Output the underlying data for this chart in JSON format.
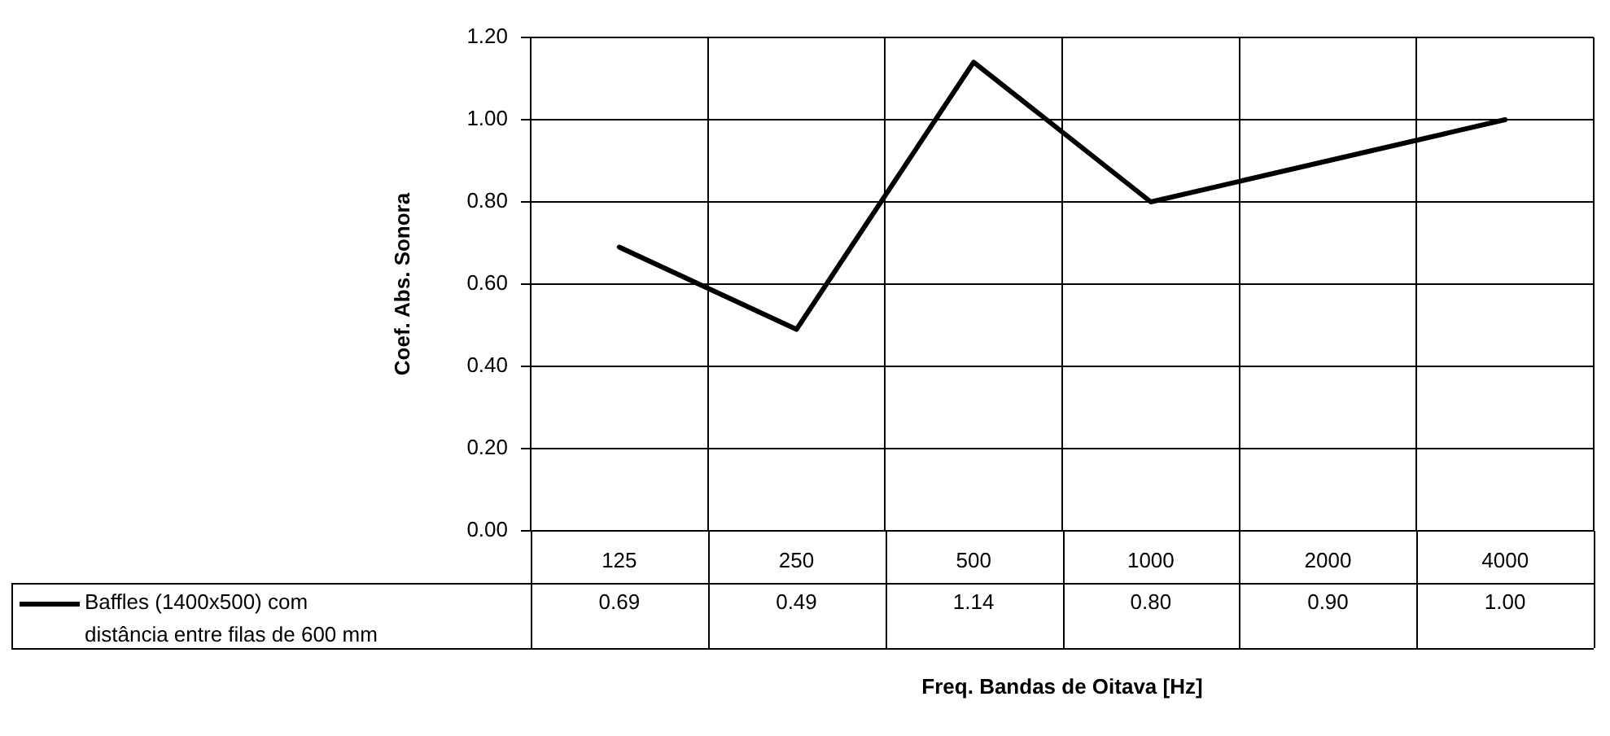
{
  "chart_data": {
    "type": "line",
    "xlabel": "Freq. Bandas de Oitava [Hz]",
    "ylabel": "Coef. Abs. Sonora",
    "categories": [
      "125",
      "250",
      "500",
      "1000",
      "2000",
      "4000"
    ],
    "series": [
      {
        "name": "Baffles (1400x500) com distância entre filas de 600 mm",
        "color": "#000000",
        "values": [
          0.69,
          0.49,
          1.14,
          0.8,
          0.9,
          1.0
        ],
        "value_labels": [
          "0.69",
          "0.49",
          "1.14",
          "0.80",
          "0.90",
          "1.00"
        ]
      }
    ],
    "ylim": [
      0,
      1.2
    ],
    "yticks": [
      {
        "value": 0,
        "label": "0.00"
      },
      {
        "value": 0.2,
        "label": "0.20"
      },
      {
        "value": 0.4,
        "label": "0.40"
      },
      {
        "value": 0.6,
        "label": "0.60"
      },
      {
        "value": 0.8,
        "label": "0.80"
      },
      {
        "value": 1.0,
        "label": "1.00"
      },
      {
        "value": 1.2,
        "label": "1.20"
      }
    ],
    "grid": true,
    "legend": "bottom left",
    "marker": "none",
    "line_style": "solid"
  }
}
